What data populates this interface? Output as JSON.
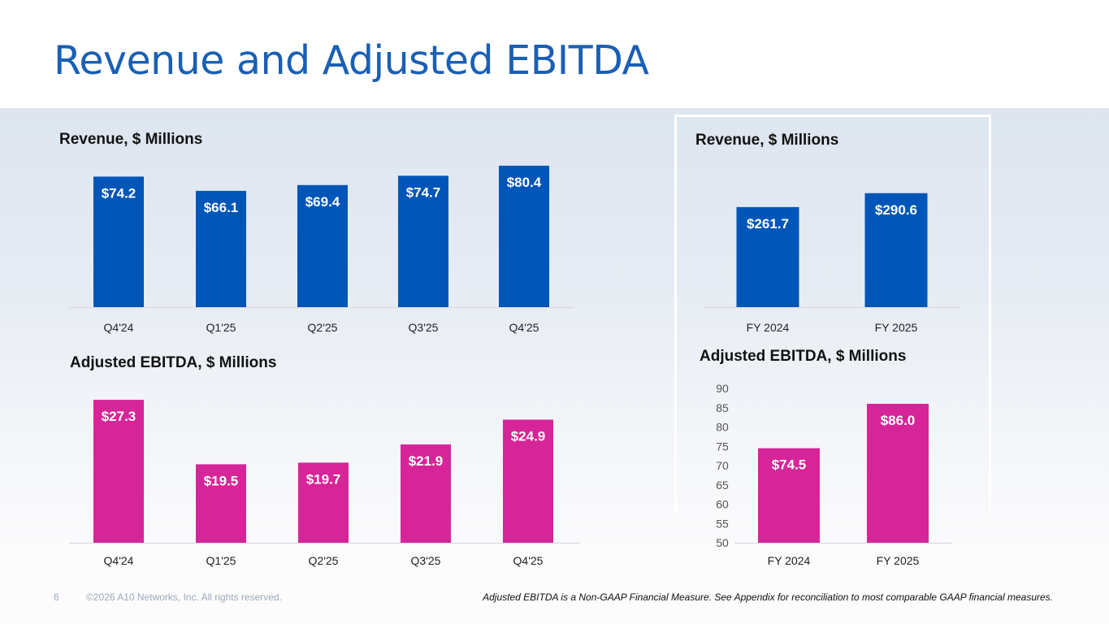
{
  "header": {
    "title": "Revenue and Adjusted EBITDA"
  },
  "colors": {
    "revenue": "#0055b8",
    "ebitda": "#d62598",
    "title": "#1a5fb4"
  },
  "chart_data": [
    {
      "id": "quarterly-revenue",
      "type": "bar",
      "title": "Revenue, $ Millions",
      "categories": [
        "Q4'24",
        "Q1'25",
        "Q2'25",
        "Q3'25",
        "Q4'25"
      ],
      "values": [
        74.2,
        66.1,
        69.4,
        74.7,
        80.4
      ],
      "data_labels": [
        "$74.2",
        "$66.1",
        "$69.4",
        "$74.7",
        "$80.4"
      ],
      "xlabel": "",
      "ylabel": "",
      "ylim": [
        0,
        85
      ],
      "y_axis_visible": false,
      "grid": false,
      "color": "#0055b8"
    },
    {
      "id": "quarterly-ebitda",
      "type": "bar",
      "title": "Adjusted EBITDA, $ Millions",
      "categories": [
        "Q4'24",
        "Q1'25",
        "Q2'25",
        "Q3'25",
        "Q4'25"
      ],
      "values": [
        27.3,
        19.5,
        19.7,
        21.9,
        24.9
      ],
      "data_labels": [
        "$27.3",
        "$19.5",
        "$19.7",
        "$21.9",
        "$24.9"
      ],
      "xlabel": "",
      "ylabel": "",
      "ylim": [
        10,
        28
      ],
      "y_axis_visible": false,
      "grid": false,
      "color": "#d62598"
    },
    {
      "id": "annual-revenue",
      "type": "bar",
      "title": "Revenue, $ Millions",
      "categories": [
        "FY 2024",
        "FY 2025"
      ],
      "values": [
        261.7,
        290.6
      ],
      "data_labels": [
        "$261.7",
        "$290.6"
      ],
      "xlabel": "",
      "ylabel": "",
      "ylim": [
        54,
        302
      ],
      "y_axis_visible": false,
      "grid": false,
      "color": "#0055b8"
    },
    {
      "id": "annual-ebitda",
      "type": "bar",
      "title": "Adjusted EBITDA, $ Millions",
      "categories": [
        "FY 2024",
        "FY 2025"
      ],
      "values": [
        74.5,
        86.0
      ],
      "data_labels": [
        "$74.5",
        "$86.0"
      ],
      "xlabel": "",
      "ylabel": "",
      "ylim": [
        50,
        90
      ],
      "y_ticks": [
        50,
        55,
        60,
        65,
        70,
        75,
        80,
        85,
        90
      ],
      "y_axis_visible": true,
      "grid": false,
      "color": "#d62598"
    }
  ],
  "footer": {
    "page_number": "6",
    "copyright": "©2026 A10 Networks, Inc. All rights reserved.",
    "note": "Adjusted EBITDA is a Non-GAAP Financial Measure. See Appendix for reconciliation to most comparable GAAP financial measures."
  }
}
